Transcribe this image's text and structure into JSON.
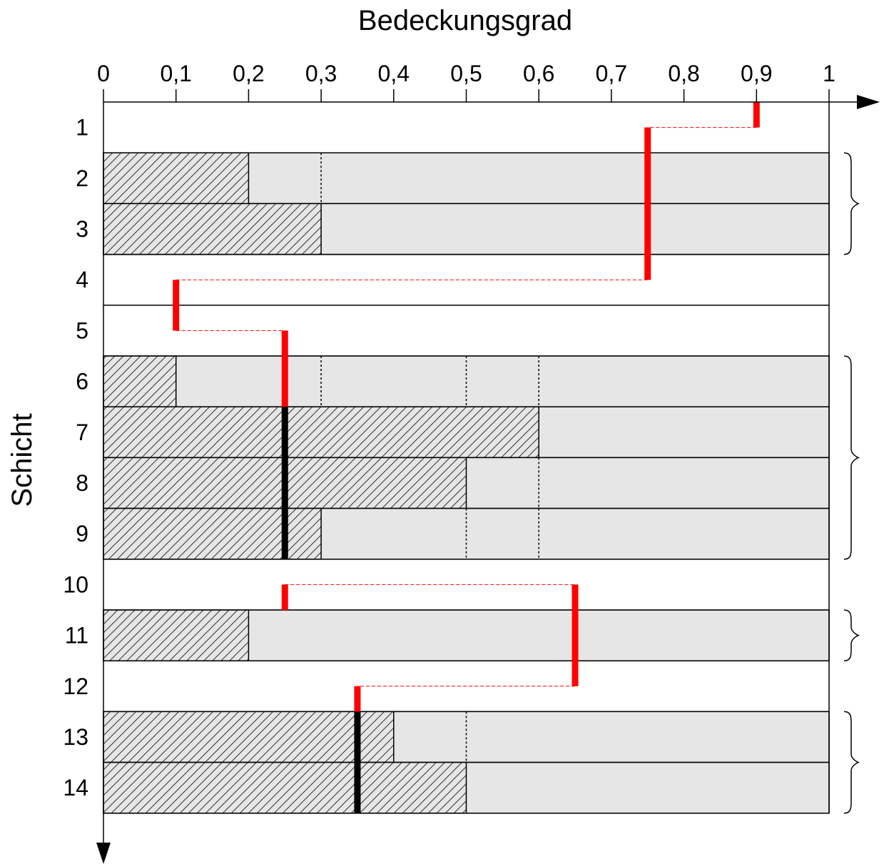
{
  "chart_data": {
    "type": "bar",
    "title": "",
    "xlabel": "Bedeckungsgrad",
    "ylabel": "Schicht",
    "xlim": [
      0,
      1
    ],
    "x_ticks": [
      {
        "value": 0,
        "label": "0"
      },
      {
        "value": 0.1,
        "label": "0,1"
      },
      {
        "value": 0.2,
        "label": "0,2"
      },
      {
        "value": 0.3,
        "label": "0,3"
      },
      {
        "value": 0.4,
        "label": "0,4"
      },
      {
        "value": 0.5,
        "label": "0,5"
      },
      {
        "value": 0.6,
        "label": "0,6"
      },
      {
        "value": 0.7,
        "label": "0,7"
      },
      {
        "value": 0.8,
        "label": "0,8"
      },
      {
        "value": 0.9,
        "label": "0,9"
      },
      {
        "value": 1,
        "label": "1"
      }
    ],
    "layers": [
      {
        "label": "1",
        "cloud": false,
        "fraction": null
      },
      {
        "label": "2",
        "cloud": true,
        "fraction": 0.2,
        "dotted": [
          0.3
        ]
      },
      {
        "label": "3",
        "cloud": true,
        "fraction": 0.3,
        "dotted": []
      },
      {
        "label": "4",
        "cloud": false,
        "fraction": null
      },
      {
        "label": "5",
        "cloud": false,
        "fraction": null
      },
      {
        "label": "6",
        "cloud": true,
        "fraction": 0.1,
        "dotted": [
          0.3,
          0.5,
          0.6
        ]
      },
      {
        "label": "7",
        "cloud": true,
        "fraction": 0.6,
        "dotted": []
      },
      {
        "label": "8",
        "cloud": true,
        "fraction": 0.5,
        "dotted": [
          0.6
        ]
      },
      {
        "label": "9",
        "cloud": true,
        "fraction": 0.3,
        "dotted": [
          0.5,
          0.6
        ]
      },
      {
        "label": "10",
        "cloud": false,
        "fraction": null
      },
      {
        "label": "11",
        "cloud": true,
        "fraction": 0.2,
        "dotted": []
      },
      {
        "label": "12",
        "cloud": false,
        "fraction": null
      },
      {
        "label": "13",
        "cloud": true,
        "fraction": 0.4,
        "dotted": [
          0.5
        ]
      },
      {
        "label": "14",
        "cloud": true,
        "fraction": 0.5,
        "dotted": []
      }
    ],
    "red_path": [
      {
        "from_layer": 1,
        "to_layer": 1,
        "x": 0.9
      },
      {
        "from_layer": 1,
        "to_layer": 1,
        "x_from": 0.9,
        "x_to": 0.75,
        "connector": true
      },
      {
        "from_layer": 1,
        "to_layer": 4,
        "x": 0.75
      },
      {
        "from_layer": 4,
        "to_layer": 4,
        "x_from": 0.75,
        "x_to": 0.1,
        "connector": true
      },
      {
        "from_layer": 4,
        "to_layer": 5,
        "x": 0.1
      },
      {
        "from_layer": 5,
        "to_layer": 5,
        "x_from": 0.1,
        "x_to": 0.25,
        "connector": true
      },
      {
        "from_layer": 5,
        "to_layer": 6,
        "x": 0.25
      },
      {
        "from_layer": 10,
        "to_layer": 10,
        "x": 0.25
      },
      {
        "from_layer": 10,
        "to_layer": 10,
        "x_from": 0.25,
        "x_to": 0.65,
        "connector": true
      },
      {
        "from_layer": 10,
        "to_layer": 12,
        "x": 0.65
      },
      {
        "from_layer": 12,
        "to_layer": 12,
        "x_from": 0.65,
        "x_to": 0.35,
        "connector": true
      },
      {
        "from_layer": 12,
        "to_layer": 12,
        "x": 0.35
      }
    ],
    "black_segments": [
      {
        "from_layer": 7,
        "to_layer": 9,
        "x": 0.25
      },
      {
        "from_layer": 13,
        "to_layer": 14,
        "x": 0.35
      }
    ],
    "braces": [
      {
        "from_layer": 2,
        "to_layer": 3
      },
      {
        "from_layer": 6,
        "to_layer": 9
      },
      {
        "from_layer": 11,
        "to_layer": 11
      },
      {
        "from_layer": 13,
        "to_layer": 14
      }
    ],
    "colors": {
      "cloud_fill": "#e6e6e6",
      "hatch": "#333333",
      "red_line": "#ff0000",
      "black_line": "#000000"
    },
    "grid": false,
    "legend": "none"
  }
}
